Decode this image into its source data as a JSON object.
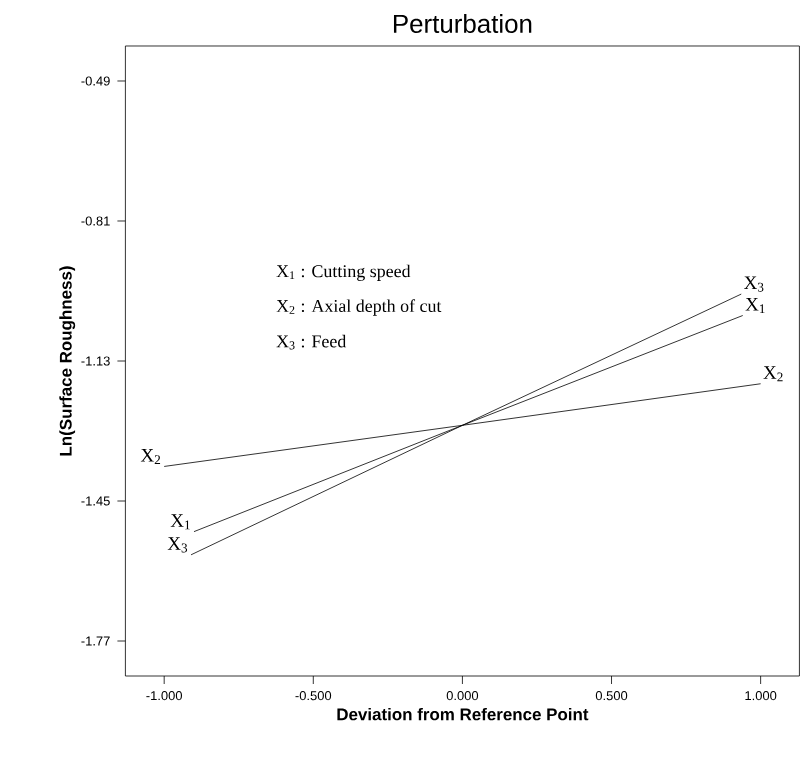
{
  "chart_data": {
    "type": "line",
    "title": "Perturbation",
    "xlabel": "Deviation from Reference Point",
    "ylabel": "Ln(Surface Roughness)",
    "xlim": [
      -1.13,
      1.13
    ],
    "ylim": [
      -1.85,
      -0.41
    ],
    "xticks": [
      {
        "value": -1,
        "label": "-1.000"
      },
      {
        "value": -0.5,
        "label": "-0.500"
      },
      {
        "value": 0,
        "label": "0.000"
      },
      {
        "value": 0.5,
        "label": "0.500"
      },
      {
        "value": 1,
        "label": "1.000"
      }
    ],
    "yticks": [
      -0.49,
      -0.81,
      -1.13,
      -1.45,
      -1.77
    ],
    "grid": false,
    "legend": false,
    "marker": "none",
    "line_style": "solid",
    "annotations": [
      "X$_{1}$ : Cutting speed",
      "X$_{2}$ : Axial depth of cut",
      "X$_{3}$ : Feed"
    ],
    "series": [
      {
        "name": "X$_{1}$",
        "color": "#000000",
        "x": [
          -0.9,
          0,
          0.94
        ],
        "values": [
          -1.52,
          -1.277,
          -1.026
        ]
      },
      {
        "name": "X$_{2}$",
        "color": "#000000",
        "x": [
          -1,
          0,
          1
        ],
        "values": [
          -1.371,
          -1.277,
          -1.182
        ]
      },
      {
        "name": "X$_{3}$",
        "color": "#000000",
        "x": [
          -0.91,
          0,
          0.935
        ],
        "values": [
          -1.573,
          -1.277,
          -0.977
        ]
      }
    ]
  }
}
